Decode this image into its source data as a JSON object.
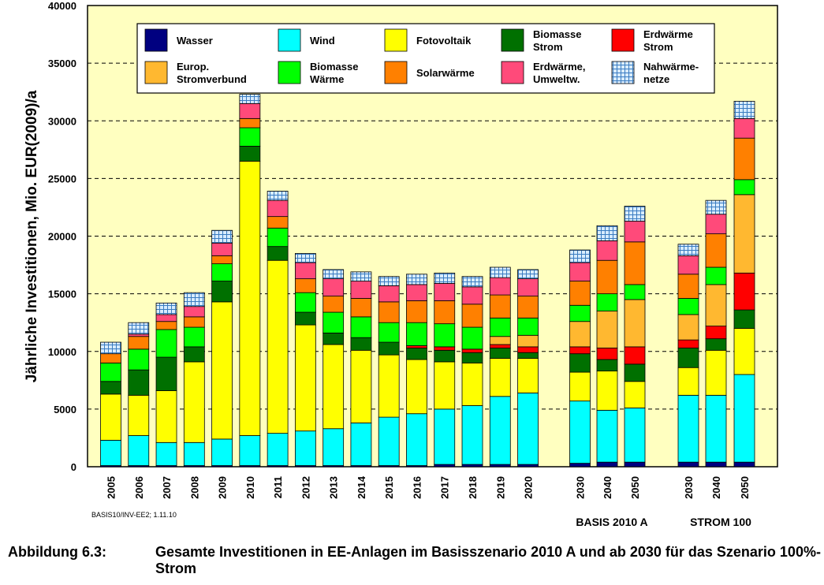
{
  "chart_data": {
    "type": "bar",
    "stacked": true,
    "ylabel": "Jährliche Investitionen, Mio. EUR(2009)/a",
    "ylim": [
      0,
      40000
    ],
    "yticks": [
      0,
      5000,
      10000,
      15000,
      20000,
      25000,
      30000,
      35000,
      40000
    ],
    "grid": true,
    "legend_position": "top",
    "categories": [
      "2005",
      "2006",
      "2007",
      "2008",
      "2009",
      "2010",
      "2011",
      "2012",
      "2013",
      "2014",
      "2015",
      "2016",
      "2017",
      "2018",
      "2019",
      "2020",
      "2030",
      "2040",
      "2050",
      "2030",
      "2040",
      "2050"
    ],
    "groups": [
      {
        "label": "BASIS 2010 A",
        "categories": [
          "2030",
          "2040",
          "2050"
        ]
      },
      {
        "label": "STROM 100",
        "categories": [
          "2030",
          "2040",
          "2050"
        ]
      }
    ],
    "series": [
      {
        "name": "Wasser",
        "color": "#000080",
        "values": [
          100,
          100,
          100,
          100,
          100,
          100,
          100,
          100,
          100,
          100,
          100,
          100,
          200,
          200,
          200,
          200,
          300,
          400,
          400,
          400,
          400,
          400
        ]
      },
      {
        "name": "Wind",
        "color": "#00ffff",
        "values": [
          2200,
          2600,
          2000,
          2000,
          2300,
          2600,
          2800,
          3000,
          3200,
          3700,
          4200,
          4500,
          4800,
          5100,
          5900,
          6200,
          5400,
          4500,
          4700,
          5800,
          5800,
          7600
        ]
      },
      {
        "name": "Fotovoltaik",
        "color": "#ffff00",
        "values": [
          4000,
          3500,
          4500,
          7000,
          11900,
          23800,
          15000,
          9200,
          7300,
          6300,
          5400,
          4700,
          4100,
          3700,
          3300,
          3000,
          2500,
          3400,
          2300,
          2400,
          3900,
          4000
        ]
      },
      {
        "name": "Biomasse Strom",
        "color": "#007000",
        "values": [
          1100,
          2200,
          2900,
          1300,
          1800,
          1300,
          1200,
          1100,
          1000,
          1100,
          1100,
          1000,
          1000,
          900,
          900,
          500,
          1600,
          1000,
          1500,
          1700,
          1000,
          1600
        ]
      },
      {
        "name": "Erdwärme Strom",
        "color": "#ff0000",
        "values": [
          0,
          0,
          0,
          0,
          0,
          0,
          0,
          0,
          0,
          0,
          0,
          200,
          300,
          300,
          300,
          500,
          600,
          1000,
          1500,
          700,
          1100,
          3200
        ]
      },
      {
        "name": "Europ. Stromverbund",
        "color": "#ffb830",
        "values": [
          0,
          0,
          0,
          0,
          0,
          0,
          0,
          0,
          0,
          0,
          0,
          0,
          0,
          0,
          700,
          1000,
          2200,
          3200,
          4100,
          2200,
          3600,
          6800
        ]
      },
      {
        "name": "Biomasse Wärme",
        "color": "#00ff00",
        "values": [
          1600,
          1800,
          2400,
          1700,
          1500,
          1600,
          1600,
          1700,
          1800,
          1800,
          1700,
          2000,
          2000,
          1900,
          1600,
          1500,
          1400,
          1500,
          1300,
          1400,
          1500,
          1300
        ]
      },
      {
        "name": "Solarwärme",
        "color": "#ff8000",
        "values": [
          800,
          1100,
          700,
          900,
          700,
          800,
          1000,
          1200,
          1400,
          1600,
          1800,
          1900,
          2000,
          2000,
          2000,
          1900,
          2100,
          2900,
          3700,
          2100,
          2900,
          3600
        ]
      },
      {
        "name": "Erdwärme, Umweltw.",
        "color": "#ff4a7a",
        "values": [
          0,
          200,
          600,
          900,
          1100,
          1300,
          1400,
          1400,
          1500,
          1500,
          1400,
          1400,
          1500,
          1500,
          1500,
          1500,
          1600,
          1700,
          1800,
          1600,
          1700,
          1700
        ]
      },
      {
        "name": "Nahwärme-netze",
        "color": "#bcd8f0",
        "values": [
          1000,
          1000,
          1000,
          1200,
          1100,
          800,
          800,
          800,
          800,
          800,
          800,
          900,
          900,
          900,
          900,
          800,
          1100,
          1300,
          1300,
          1000,
          1200,
          1500
        ]
      }
    ]
  },
  "footnote": "BASIS10/INV-EE2; 1.11.10",
  "caption": {
    "label": "Abbildung 6.3:",
    "text": "Gesamte Investitionen in EE-Anlagen im Basisszenario 2010 A und ab 2030 für das Szenario 100%-Strom"
  },
  "legend": [
    [
      "Wasser"
    ],
    [
      "Wind"
    ],
    [
      "Fotovoltaik"
    ],
    [
      "Biomasse",
      "Strom"
    ],
    [
      "Erdwärme",
      "Strom"
    ],
    [
      "Europ.",
      "Stromverbund"
    ],
    [
      "Biomasse",
      "Wärme"
    ],
    [
      "Solarwärme"
    ],
    [
      "Erdwärme,",
      "Umweltw."
    ],
    [
      "Nahwärme-",
      "netze"
    ]
  ]
}
